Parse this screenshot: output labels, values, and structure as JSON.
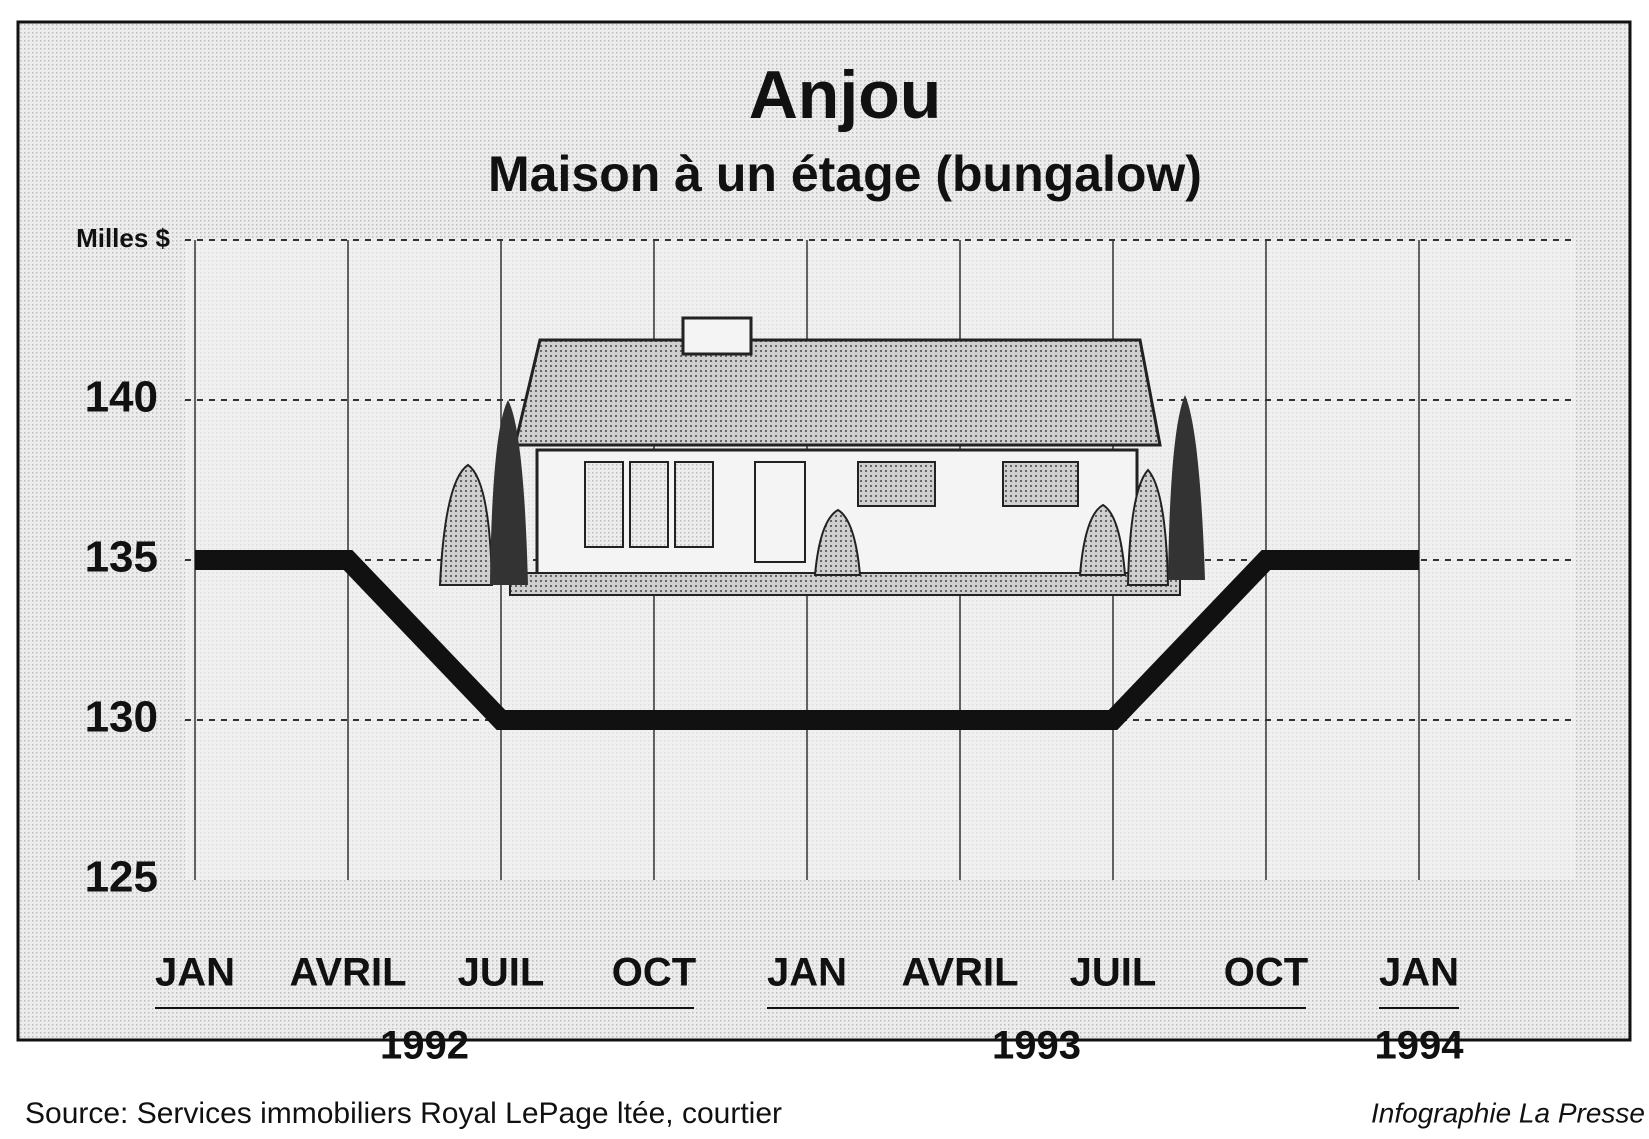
{
  "chart_data": {
    "type": "line",
    "title": "Anjou",
    "subtitle": "Maison à un étage (bungalow)",
    "categories": [
      "JAN",
      "AVRIL",
      "JUIL",
      "OCT",
      "JAN",
      "AVRIL",
      "JUIL",
      "OCT",
      "JAN"
    ],
    "year_groups": [
      {
        "label": "1992",
        "start": 0,
        "end": 3
      },
      {
        "label": "1993",
        "start": 4,
        "end": 7
      },
      {
        "label": "1994",
        "start": 8,
        "end": 8
      }
    ],
    "series": [
      {
        "color": "#111111",
        "values": [
          135,
          135,
          130,
          130,
          130,
          130,
          130,
          135,
          135
        ]
      }
    ],
    "ylim": [
      125,
      145
    ],
    "yticks": [
      125,
      130,
      135,
      140,
      {
        "value": 145,
        "label": "Milles $"
      }
    ],
    "grid": true,
    "source": "Source: Services immobiliers Royal LePage ltée, courtier",
    "credit": "Infographie La Presse"
  }
}
